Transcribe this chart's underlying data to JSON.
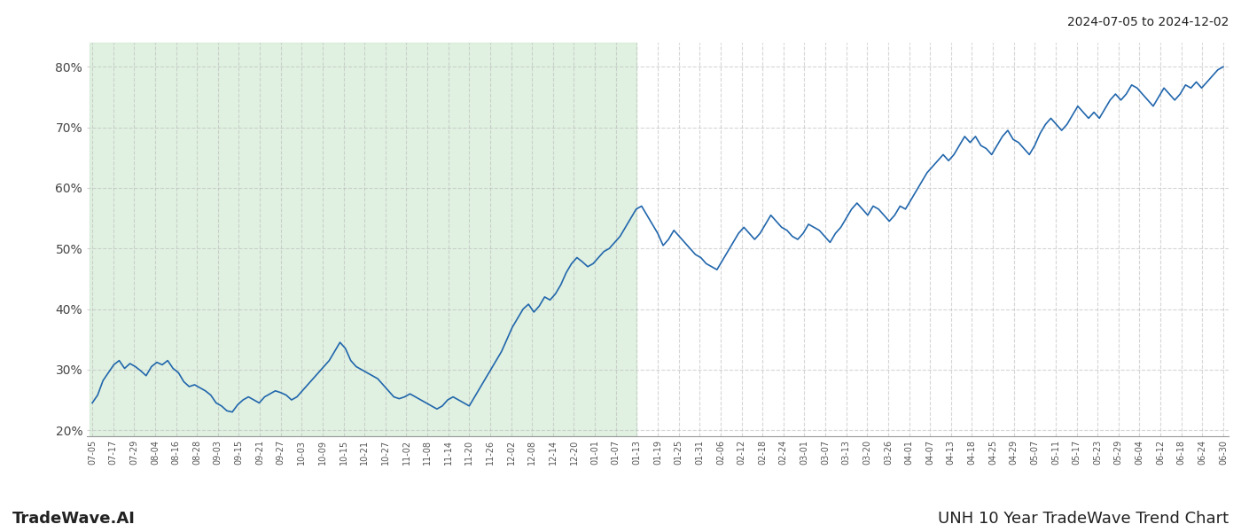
{
  "title_top_right": "2024-07-05 to 2024-12-02",
  "title_bottom_left": "TradeWave.AI",
  "title_bottom_right": "UNH 10 Year TradeWave Trend Chart",
  "line_color": "#2166ac",
  "shade_color": "#c8e6c9",
  "shade_alpha": 0.55,
  "ylim": [
    19,
    84
  ],
  "yticks": [
    20,
    30,
    40,
    50,
    60,
    70,
    80
  ],
  "ytick_labels": [
    "20%",
    "30%",
    "40%",
    "50%",
    "60%",
    "70%",
    "80%"
  ],
  "background_color": "#ffffff",
  "grid_color": "#bbbbbb",
  "grid_style": "--",
  "grid_alpha": 0.6,
  "x_labels": [
    "07-05",
    "07-17",
    "07-29",
    "08-04",
    "08-16",
    "08-28",
    "09-03",
    "09-15",
    "09-21",
    "09-27",
    "10-03",
    "10-09",
    "10-15",
    "10-21",
    "10-27",
    "11-02",
    "11-08",
    "11-14",
    "11-20",
    "11-26",
    "12-02",
    "12-08",
    "12-14",
    "12-20",
    "01-01",
    "01-07",
    "01-13",
    "01-19",
    "01-25",
    "01-31",
    "02-06",
    "02-12",
    "02-18",
    "02-24",
    "03-01",
    "03-07",
    "03-13",
    "03-20",
    "03-26",
    "04-01",
    "04-07",
    "04-13",
    "04-18",
    "04-25",
    "04-29",
    "05-07",
    "05-11",
    "05-17",
    "05-23",
    "05-29",
    "06-04",
    "06-12",
    "06-18",
    "06-24",
    "06-30"
  ],
  "y_values": [
    24.5,
    25.8,
    28.2,
    29.5,
    30.8,
    31.5,
    30.2,
    31.0,
    30.5,
    29.8,
    29.0,
    30.5,
    31.2,
    30.8,
    31.5,
    30.2,
    29.5,
    28.0,
    27.2,
    27.5,
    27.0,
    26.5,
    25.8,
    24.5,
    24.0,
    23.2,
    23.0,
    24.2,
    25.0,
    25.5,
    25.0,
    24.5,
    25.5,
    26.0,
    26.5,
    26.2,
    25.8,
    25.0,
    25.5,
    26.5,
    27.5,
    28.5,
    29.5,
    30.5,
    31.5,
    33.0,
    34.5,
    33.5,
    31.5,
    30.5,
    30.0,
    29.5,
    29.0,
    28.5,
    27.5,
    26.5,
    25.5,
    25.2,
    25.5,
    26.0,
    25.5,
    25.0,
    24.5,
    24.0,
    23.5,
    24.0,
    25.0,
    25.5,
    25.0,
    24.5,
    24.0,
    25.5,
    27.0,
    28.5,
    30.0,
    31.5,
    33.0,
    35.0,
    37.0,
    38.5,
    40.0,
    40.8,
    39.5,
    40.5,
    42.0,
    41.5,
    42.5,
    44.0,
    46.0,
    47.5,
    48.5,
    47.8,
    47.0,
    47.5,
    48.5,
    49.5,
    50.0,
    51.0,
    52.0,
    53.5,
    55.0,
    56.5,
    57.0,
    55.5,
    54.0,
    52.5,
    50.5,
    51.5,
    53.0,
    52.0,
    51.0,
    50.0,
    49.0,
    48.5,
    47.5,
    47.0,
    46.5,
    48.0,
    49.5,
    51.0,
    52.5,
    53.5,
    52.5,
    51.5,
    52.5,
    54.0,
    55.5,
    54.5,
    53.5,
    53.0,
    52.0,
    51.5,
    52.5,
    54.0,
    53.5,
    53.0,
    52.0,
    51.0,
    52.5,
    53.5,
    55.0,
    56.5,
    57.5,
    56.5,
    55.5,
    57.0,
    56.5,
    55.5,
    54.5,
    55.5,
    57.0,
    56.5,
    58.0,
    59.5,
    61.0,
    62.5,
    63.5,
    64.5,
    65.5,
    64.5,
    65.5,
    67.0,
    68.5,
    67.5,
    68.5,
    67.0,
    66.5,
    65.5,
    67.0,
    68.5,
    69.5,
    68.0,
    67.5,
    66.5,
    65.5,
    67.0,
    69.0,
    70.5,
    71.5,
    70.5,
    69.5,
    70.5,
    72.0,
    73.5,
    72.5,
    71.5,
    72.5,
    71.5,
    73.0,
    74.5,
    75.5,
    74.5,
    75.5,
    77.0,
    76.5,
    75.5,
    74.5,
    73.5,
    75.0,
    76.5,
    75.5,
    74.5,
    75.5,
    77.0,
    76.5,
    77.5,
    76.5,
    77.5,
    78.5,
    79.5,
    80.0
  ],
  "shade_end_label": "11-26",
  "n_shade_points": 101
}
